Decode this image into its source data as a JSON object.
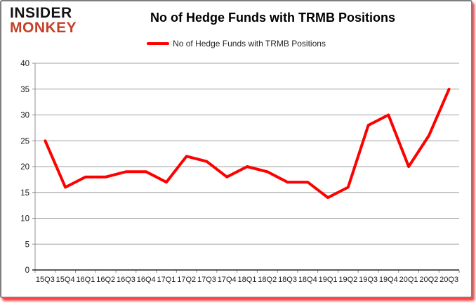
{
  "logo": {
    "line1": "INSIDER",
    "line2": "MONKEY",
    "color1": "#141414",
    "color2": "#c4402a"
  },
  "header": {
    "title": "No of Hedge Funds with TRMB Positions"
  },
  "legend": {
    "label": "No of Hedge Funds with TRMB Positions",
    "line_color": "#ff0000"
  },
  "colors": {
    "series_line": "#ff0000",
    "gridline": "#a0a0a0",
    "y_axis": "#8f8f8f",
    "x_axis": "#262626",
    "tick": "#8f8f8f",
    "tick_label": "#1a1a1a",
    "frame_border": "#7e7e7e",
    "frame_shadow": "#fd1e1e"
  },
  "chart_data": {
    "type": "line",
    "title": "No of Hedge Funds with TRMB Positions",
    "categories": [
      "15Q3",
      "15Q4",
      "16Q1",
      "16Q2",
      "16Q3",
      "16Q4",
      "17Q1",
      "17Q2",
      "17Q3",
      "17Q4",
      "18Q1",
      "18Q2",
      "18Q3",
      "18Q4",
      "19Q1",
      "19Q2",
      "19Q3",
      "19Q4",
      "20Q1",
      "20Q2",
      "20Q3"
    ],
    "series": [
      {
        "name": "No of Hedge Funds with TRMB Positions",
        "color": "#ff0000",
        "values": [
          25,
          16,
          18,
          18,
          19,
          19,
          17,
          22,
          21,
          18,
          20,
          19,
          17,
          17,
          14,
          16,
          28,
          30,
          20,
          26,
          35
        ]
      }
    ],
    "xlabel": "",
    "ylabel": "",
    "ylim": [
      0,
      40
    ],
    "ytick_interval": 5,
    "grid": true,
    "legend_position": "top-center"
  }
}
